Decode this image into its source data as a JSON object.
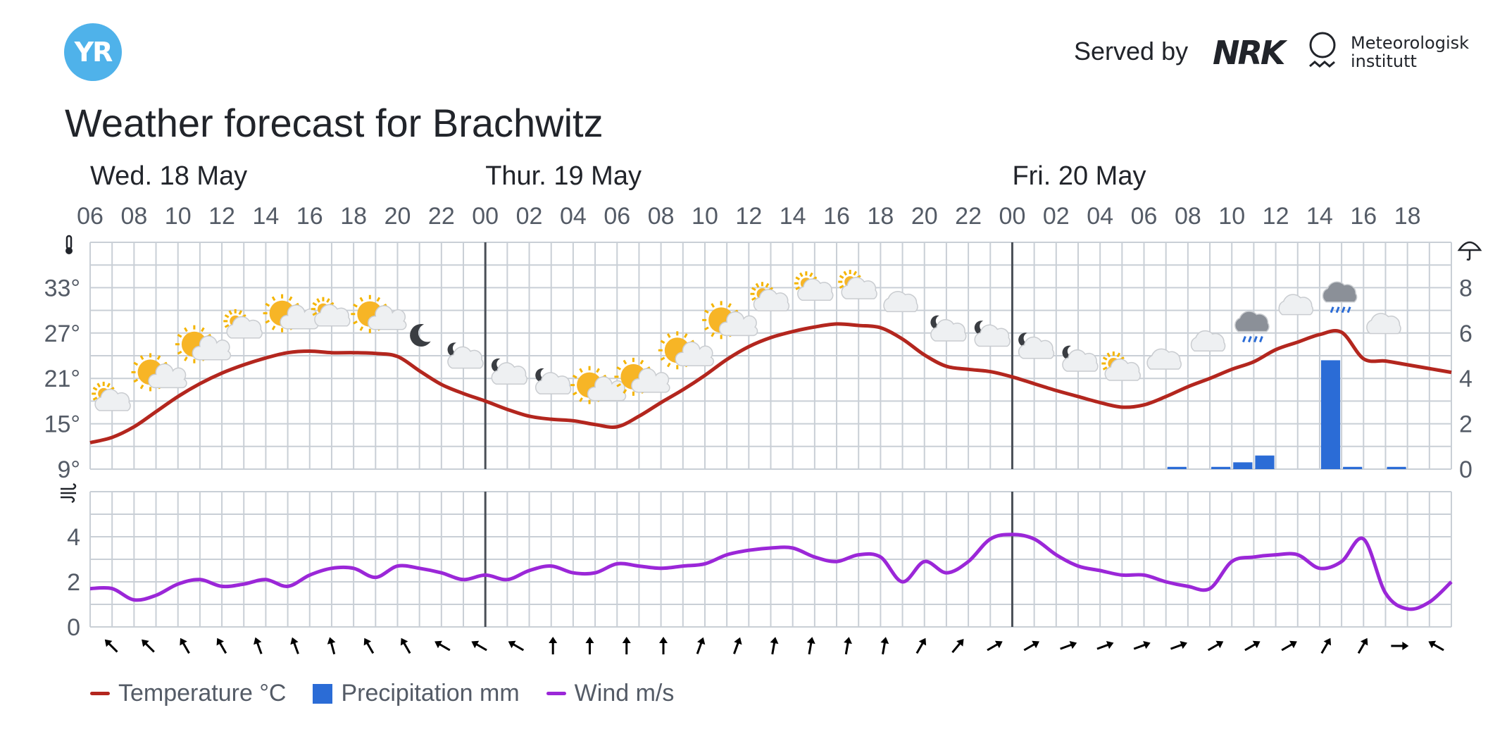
{
  "header": {
    "logo_text": "YR",
    "served_by": "Served by",
    "nrk_text": "NRK",
    "met_text": "Meteorologisk\ninstitutt",
    "title": "Weather forecast for Brachwitz"
  },
  "colors": {
    "temperature": "#b3261e",
    "precipitation": "#2b6cd6",
    "wind": "#9b27d8",
    "grid": "#c9cfd6",
    "day_line": "#4a4f57"
  },
  "chart_data": {
    "type": "line",
    "days": [
      {
        "label": "Wed. 18 May",
        "start_index": 0
      },
      {
        "label": "Thur. 19 May",
        "start_index": 18
      },
      {
        "label": "Fri. 20 May",
        "start_index": 42
      }
    ],
    "x_hours": [
      "06",
      "07",
      "08",
      "09",
      "10",
      "11",
      "12",
      "13",
      "14",
      "15",
      "16",
      "17",
      "18",
      "19",
      "20",
      "21",
      "22",
      "23",
      "00",
      "01",
      "02",
      "03",
      "04",
      "05",
      "06",
      "07",
      "08",
      "09",
      "10",
      "11",
      "12",
      "13",
      "14",
      "15",
      "16",
      "17",
      "18",
      "19",
      "20",
      "21",
      "22",
      "23",
      "00",
      "01",
      "02",
      "03",
      "04",
      "05",
      "06",
      "07",
      "08",
      "09",
      "10",
      "11",
      "12",
      "13",
      "14",
      "15",
      "16",
      "17",
      "18",
      "19",
      "20"
    ],
    "x_tick_labels": [
      "06",
      "08",
      "10",
      "12",
      "14",
      "16",
      "18",
      "20",
      "22",
      "00",
      "02",
      "04",
      "06",
      "08",
      "10",
      "12",
      "14",
      "16",
      "18",
      "20",
      "22",
      "00",
      "02",
      "04",
      "06",
      "08",
      "10",
      "12",
      "14",
      "16",
      "18"
    ],
    "temperature": {
      "name": "Temperature °C",
      "y_ticks": [
        "9°",
        "15°",
        "21°",
        "27°",
        "33°"
      ],
      "ylim": [
        9,
        39
      ],
      "values": [
        12.5,
        13.2,
        14.6,
        16.6,
        18.6,
        20.3,
        21.7,
        22.8,
        23.7,
        24.4,
        24.6,
        24.4,
        24.4,
        24.3,
        23.9,
        22.0,
        20.2,
        19.0,
        18.0,
        16.9,
        16.0,
        15.6,
        15.4,
        14.9,
        14.6,
        16.0,
        17.8,
        19.5,
        21.4,
        23.5,
        25.2,
        26.4,
        27.2,
        27.8,
        28.2,
        28.0,
        27.7,
        26.2,
        24.1,
        22.6,
        22.2,
        21.9,
        21.2,
        20.3,
        19.4,
        18.6,
        17.8,
        17.2,
        17.5,
        18.6,
        19.9,
        21.0,
        22.2,
        23.2,
        24.8,
        25.8,
        26.8,
        27.1,
        23.6,
        23.3,
        22.8,
        22.3,
        21.8
      ]
    },
    "precipitation": {
      "name": "Precipitation mm",
      "y_ticks": [
        "0",
        "2",
        "4",
        "6",
        "8"
      ],
      "ylim": [
        0,
        10
      ],
      "values": [
        0,
        0,
        0,
        0,
        0,
        0,
        0,
        0,
        0,
        0,
        0,
        0,
        0,
        0,
        0,
        0,
        0,
        0,
        0,
        0,
        0,
        0,
        0,
        0,
        0,
        0,
        0,
        0,
        0,
        0,
        0,
        0,
        0,
        0,
        0,
        0,
        0,
        0,
        0,
        0,
        0,
        0,
        0,
        0,
        0,
        0,
        0,
        0,
        0,
        0.1,
        0,
        0.1,
        0.3,
        0.6,
        0,
        0,
        4.8,
        0.1,
        0,
        0.1,
        0,
        0,
        0
      ]
    },
    "wind": {
      "name": "Wind m/s",
      "y_ticks": [
        "0",
        "2",
        "4"
      ],
      "ylim": [
        0,
        6
      ],
      "values": [
        1.7,
        1.7,
        1.2,
        1.4,
        1.9,
        2.1,
        1.8,
        1.9,
        2.1,
        1.8,
        2.3,
        2.6,
        2.6,
        2.2,
        2.7,
        2.6,
        2.4,
        2.1,
        2.3,
        2.1,
        2.5,
        2.7,
        2.4,
        2.4,
        2.8,
        2.7,
        2.6,
        2.7,
        2.8,
        3.2,
        3.4,
        3.5,
        3.5,
        3.1,
        2.9,
        3.2,
        3.1,
        2.0,
        2.9,
        2.4,
        2.9,
        3.9,
        4.1,
        3.9,
        3.2,
        2.7,
        2.5,
        2.3,
        2.3,
        2.0,
        1.8,
        1.7,
        2.9,
        3.1,
        3.2,
        3.2,
        2.6,
        2.9,
        3.9,
        1.5,
        0.8,
        1.1,
        2.0
      ]
    },
    "wind_direction_degrees": [
      315,
      315,
      330,
      330,
      340,
      340,
      345,
      330,
      330,
      300,
      300,
      300,
      0,
      0,
      0,
      0,
      20,
      20,
      10,
      10,
      10,
      10,
      30,
      40,
      60,
      60,
      70,
      70,
      70,
      70,
      60,
      60,
      60,
      30,
      30,
      90,
      300
    ],
    "weather_icons": [
      "partly-cloudy-icon",
      "partly-sunny-icon",
      "partly-sunny-icon",
      "partly-cloudy-icon",
      "partly-sunny-icon",
      "partly-cloudy-icon",
      "partly-sunny-icon",
      "moon-icon",
      "night-cloudy-icon",
      "night-cloudy-icon",
      "night-cloudy-icon",
      "partly-sunny-icon",
      "partly-sunny-icon",
      "partly-sunny-icon",
      "partly-sunny-icon",
      "partly-cloudy-icon",
      "partly-cloudy-icon",
      "partly-cloudy-icon",
      "cloudy-icon",
      "night-cloudy-icon",
      "night-cloudy-icon",
      "night-cloudy-icon",
      "night-cloudy-icon",
      "partly-cloudy-icon",
      "cloudy-icon",
      "cloudy-icon",
      "rain-cloud-icon",
      "cloudy-icon",
      "rain-cloud-icon",
      "cloudy-icon"
    ],
    "legend_position": "bottom-left",
    "grid": true
  }
}
